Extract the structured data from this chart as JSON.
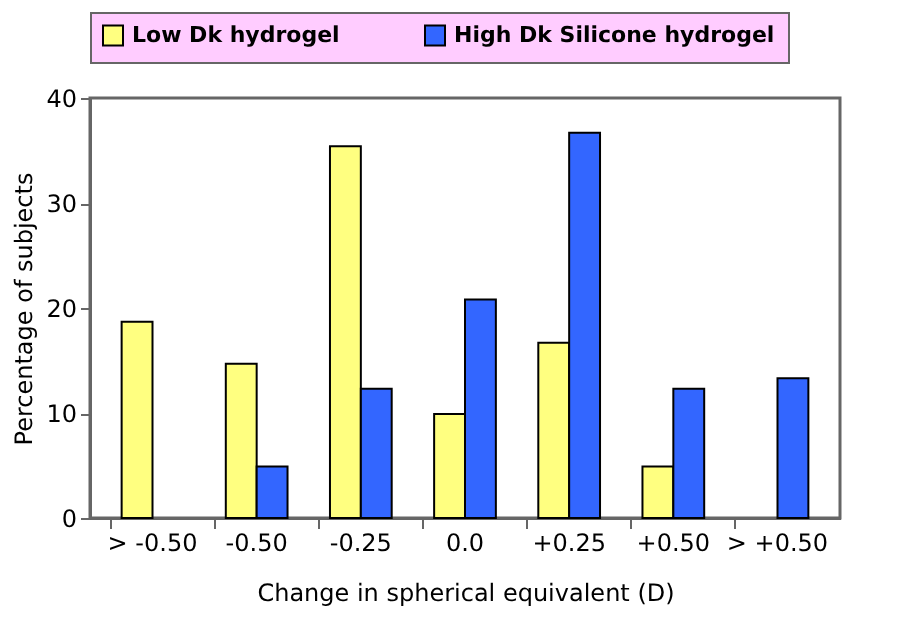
{
  "chart_data": {
    "type": "bar",
    "xlabel": "Change in spherical equivalent (D)",
    "ylabel": "Percentage of subjects",
    "categories": [
      "> -0.50",
      "-0.50",
      "-0.25",
      "0.0",
      "+0.25",
      "+0.50",
      "> +0.50"
    ],
    "series": [
      {
        "name": "Low Dk hydrogel",
        "color": "#ffff80",
        "values": [
          18.7,
          14.7,
          35.4,
          9.9,
          16.7,
          4.9,
          null
        ]
      },
      {
        "name": "High Dk Silicone hydrogel",
        "color": "#3366ff",
        "values": [
          null,
          4.9,
          12.3,
          20.8,
          36.7,
          12.3,
          13.3
        ]
      }
    ],
    "ylim": [
      0,
      40
    ],
    "yticks": [
      0,
      10,
      20,
      30,
      40
    ],
    "grid": false,
    "legend": "top"
  }
}
